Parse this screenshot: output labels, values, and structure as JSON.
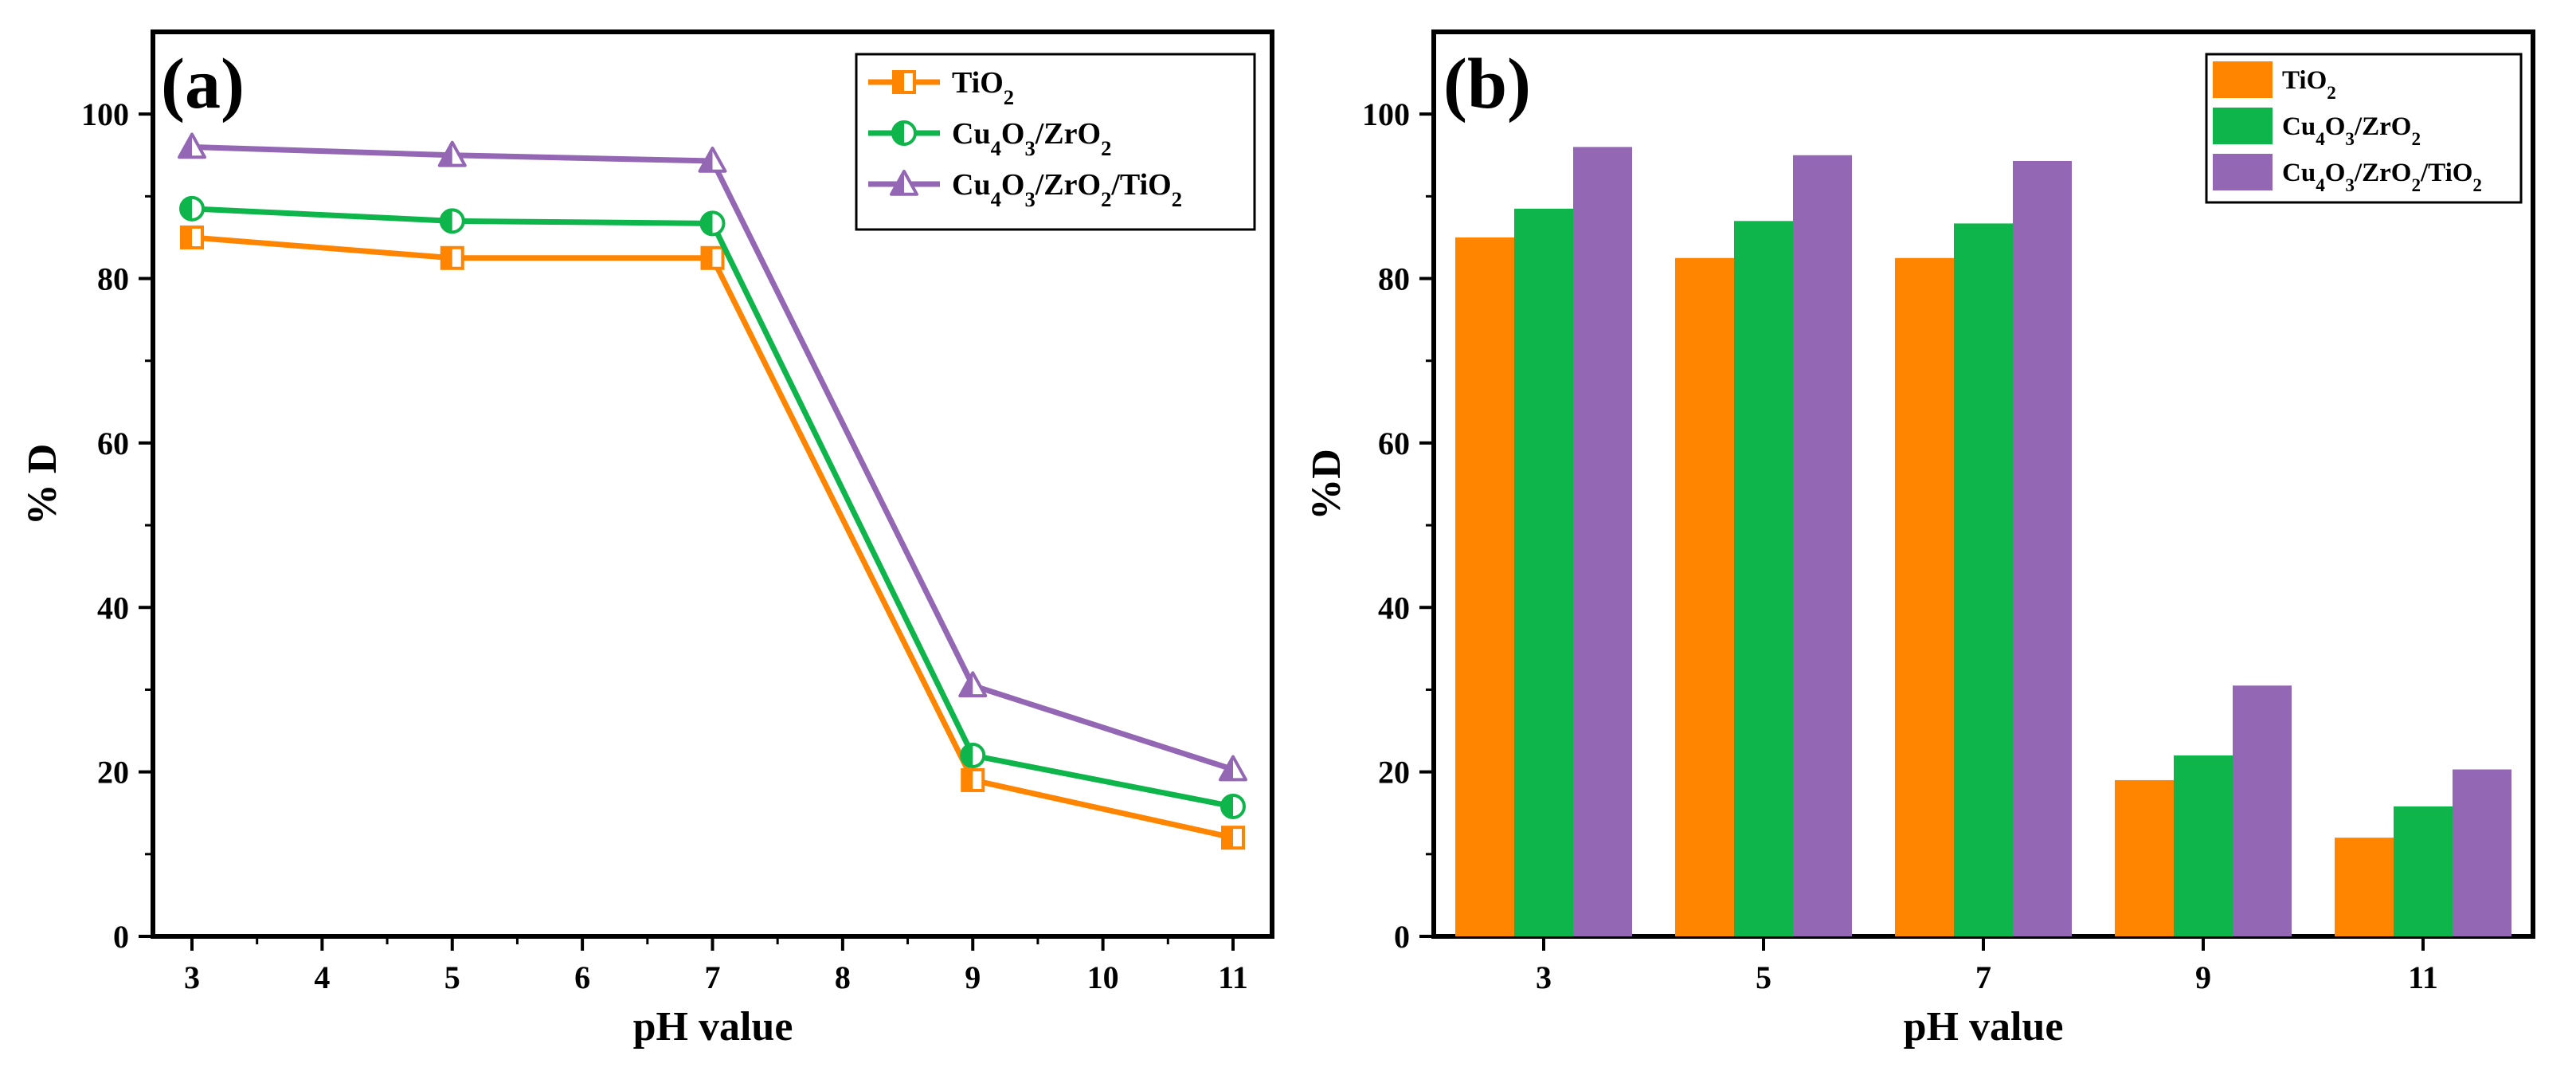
{
  "colors": {
    "TiO2": "#ff8400",
    "Cu4O3/ZrO2": "#0db54a",
    "Cu4O3/ZrO2/TiO2": "#9467b5",
    "axis": "#000000",
    "background": "#ffffff"
  },
  "chart_data": [
    {
      "type": "line",
      "panel_label": "(a)",
      "xlabel": "pH value",
      "ylabel": "% D",
      "xlim": [
        2.7,
        11.3
      ],
      "ylim": [
        0,
        110
      ],
      "x_ticks": [
        "3",
        "4",
        "5",
        "6",
        "7",
        "8",
        "9",
        "10",
        "11"
      ],
      "y_ticks": [
        "0",
        "20",
        "40",
        "60",
        "80",
        "100"
      ],
      "x": [
        3,
        5,
        7,
        9,
        11
      ],
      "legend_position": "top-right",
      "series": [
        {
          "name": "TiO2",
          "label": "TiO",
          "sub": "2",
          "marker": "half-square",
          "color_key": "TiO2",
          "values": [
            85,
            82.5,
            82.5,
            19,
            12
          ]
        },
        {
          "name": "Cu4O3/ZrO2",
          "label": "Cu",
          "sub": "4",
          "label2": "O",
          "sub2": "3",
          "label3": "/ZrO",
          "sub3": "2",
          "marker": "half-circle",
          "color_key": "Cu4O3/ZrO2",
          "values": [
            88.5,
            87,
            86.7,
            22,
            15.8
          ]
        },
        {
          "name": "Cu4O3/ZrO2/TiO2",
          "label": "Cu",
          "sub": "4",
          "label2": "O",
          "sub2": "3",
          "label3": "/ZrO",
          "sub3": "2",
          "label4": "/TiO",
          "sub4": "2",
          "marker": "half-triangle",
          "color_key": "Cu4O3/ZrO2/TiO2",
          "values": [
            96,
            95,
            94.3,
            30.5,
            20.3
          ]
        }
      ]
    },
    {
      "type": "bar",
      "panel_label": "(b)",
      "xlabel": "pH value",
      "ylabel": "%D",
      "ylim": [
        0,
        110
      ],
      "categories": [
        "3",
        "5",
        "7",
        "9",
        "11"
      ],
      "y_ticks": [
        "0",
        "20",
        "40",
        "60",
        "80",
        "100"
      ],
      "legend_position": "top-right",
      "series": [
        {
          "name": "TiO2",
          "label": "TiO",
          "sub": "2",
          "color_key": "TiO2",
          "values": [
            85,
            82.5,
            82.5,
            19,
            12
          ]
        },
        {
          "name": "Cu4O3/ZrO2",
          "label": "Cu",
          "sub": "4",
          "label2": "O",
          "sub2": "3",
          "label3": "/ZrO",
          "sub3": "2",
          "color_key": "Cu4O3/ZrO2",
          "values": [
            88.5,
            87,
            86.7,
            22,
            15.8
          ]
        },
        {
          "name": "Cu4O3/ZrO2/TiO2",
          "label": "Cu",
          "sub": "4",
          "label2": "O",
          "sub2": "3",
          "label3": "/ZrO",
          "sub3": "2",
          "label4": "/TiO",
          "sub4": "2",
          "color_key": "Cu4O3/ZrO2/TiO2",
          "values": [
            96,
            95,
            94.3,
            30.5,
            20.3
          ]
        }
      ]
    }
  ]
}
